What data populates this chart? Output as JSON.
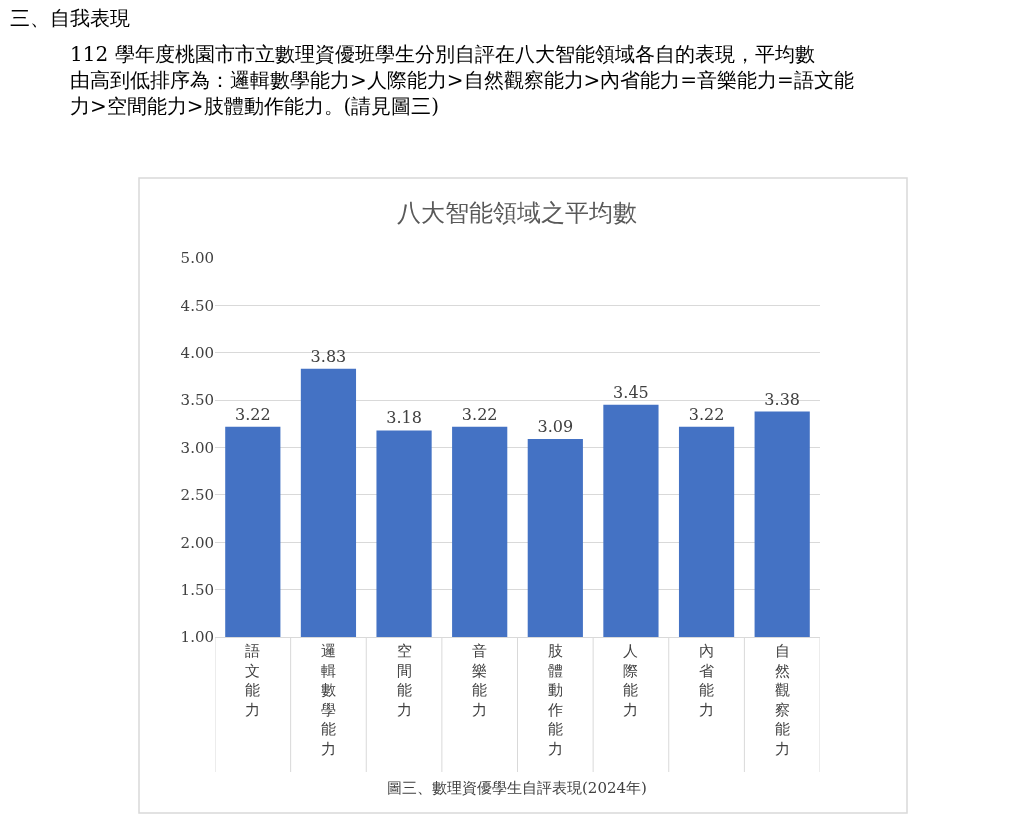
{
  "chart_data": {
    "type": "bar",
    "title": "八大智能領域之平均數",
    "categories": [
      "語文能力",
      "邏輯數學能力",
      "空間能力",
      "音樂能力",
      "肢體動作能力",
      "人際能力",
      "內省能力",
      "自然觀察能力"
    ],
    "values": [
      3.22,
      3.83,
      3.18,
      3.22,
      3.09,
      3.45,
      3.22,
      3.38
    ],
    "color": "#4472c4",
    "ylim": [
      1,
      5
    ],
    "yticks": [
      {
        "value": 1,
        "label": "1.00"
      },
      {
        "value": 1.5,
        "label": "1.50"
      },
      {
        "value": 2,
        "label": "2.00"
      },
      {
        "value": 2.5,
        "label": "2.50"
      },
      {
        "value": 3,
        "label": "3.00"
      },
      {
        "value": 3.5,
        "label": "3.50"
      },
      {
        "value": 4,
        "label": "4.00"
      },
      {
        "value": 4.5,
        "label": "4.50"
      },
      {
        "value": 5,
        "label": "5.00"
      }
    ],
    "grid": "y",
    "data_labels": true,
    "legend": false,
    "annotations": [
      "三、自我表現",
      "112 學年度桃園市市立數理資優班學生分別自評在八大智能領域各自的表現，平均數由高到低排序為：邏輯數學能力>人際能力>自然觀察能力>內省能力=音樂能力=語文能力>空間能力>肢體動作能力。(請見圖三)",
      "圖三、數理資優學生自評表現(2024年)"
    ]
  }
}
